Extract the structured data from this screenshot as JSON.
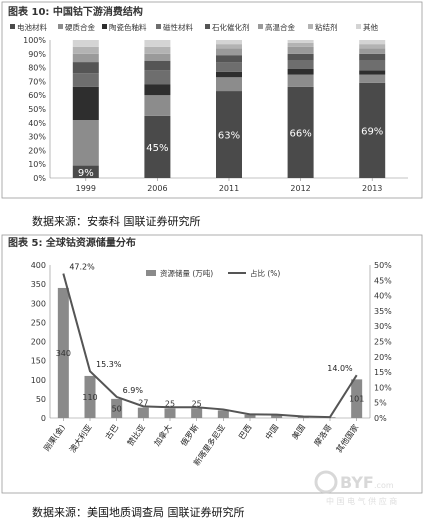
{
  "chart_data": [
    {
      "type": "bar",
      "title": "图表 10: 中国钴下游消费结构",
      "stacked": true,
      "categories": [
        "1999",
        "2006",
        "2011",
        "2012",
        "2013"
      ],
      "series": [
        {
          "name": "电池材料",
          "values": [
            9,
            45,
            63,
            66,
            69
          ],
          "color": "#4a4a4a"
        },
        {
          "name": "硬质合金",
          "values": [
            33,
            15,
            10,
            9,
            6
          ],
          "color": "#8c8c8c"
        },
        {
          "name": "陶瓷色釉料",
          "values": [
            24,
            8,
            4,
            4,
            3
          ],
          "color": "#2e2e2e"
        },
        {
          "name": "磁性材料",
          "values": [
            10,
            10,
            7,
            6,
            7
          ],
          "color": "#6e6e6e"
        },
        {
          "name": "石化催化剂",
          "values": [
            8,
            7,
            5,
            5,
            5
          ],
          "color": "#555555"
        },
        {
          "name": "高温合金",
          "values": [
            6,
            5,
            5,
            5,
            4
          ],
          "color": "#9a9a9a"
        },
        {
          "name": "粘结剂",
          "values": [
            5,
            5,
            3,
            3,
            3
          ],
          "color": "#b3b3b3"
        },
        {
          "name": "其他",
          "values": [
            5,
            5,
            3,
            2,
            3
          ],
          "color": "#d4d4d4"
        }
      ],
      "data_labels": [
        "9%",
        "45%",
        "63%",
        "66%",
        "69%"
      ],
      "ylim": [
        0,
        100
      ],
      "yticks": [
        "0%",
        "10%",
        "20%",
        "30%",
        "40%",
        "50%",
        "60%",
        "70%",
        "80%",
        "90%",
        "100%"
      ],
      "legend_placement": "top"
    },
    {
      "type": "bar",
      "title": "图表 5: 全球钴资源储量分布",
      "categories": [
        "刚果(金)",
        "澳大利亚",
        "古巴",
        "赞比亚",
        "加拿大",
        "俄罗斯",
        "新喀里多尼亚",
        "巴西",
        "中国",
        "美国",
        "摩洛哥",
        "其他国家"
      ],
      "series": [
        {
          "name": "资源储量 (万吨)",
          "type": "bar",
          "axis": "left",
          "values": [
            340,
            110,
            50,
            27,
            25,
            25,
            20,
            8.5,
            8,
            3.3,
            2,
            101
          ],
          "color": "#8a8a8a"
        },
        {
          "name": "占比 (%)",
          "type": "line",
          "axis": "right",
          "values": [
            47.2,
            15.3,
            6.9,
            3.8,
            3.5,
            3.5,
            2.8,
            1.2,
            1.1,
            0.5,
            0.3,
            14.0
          ],
          "color": "#555555"
        }
      ],
      "bar_labels": [
        "340",
        "110",
        "50",
        "27",
        "25",
        "25",
        "",
        "",
        "",
        "",
        "",
        "101"
      ],
      "line_labels": [
        "47.2%",
        "15.3%",
        "6.9%",
        "",
        "",
        "",
        "",
        "",
        "",
        "",
        "",
        "14.0%"
      ],
      "ylim_left": [
        0,
        400
      ],
      "yticks_left": [
        "0",
        "50",
        "100",
        "150",
        "200",
        "250",
        "300",
        "350",
        "400"
      ],
      "ylim_right": [
        0,
        50
      ],
      "yticks_right": [
        "0%",
        "5%",
        "10%",
        "15%",
        "20%",
        "25%",
        "30%",
        "35%",
        "40%",
        "45%",
        "50%"
      ],
      "legend_placement": "top-center"
    }
  ],
  "source1": "数据来源：安泰科 国联证券研究所",
  "source2": "数据来源：美国地质调查局 国联证券研究所",
  "watermark": {
    "logo": "BYF",
    "domain": ".com",
    "tagline": "中 国 电 气 供 应 商"
  }
}
